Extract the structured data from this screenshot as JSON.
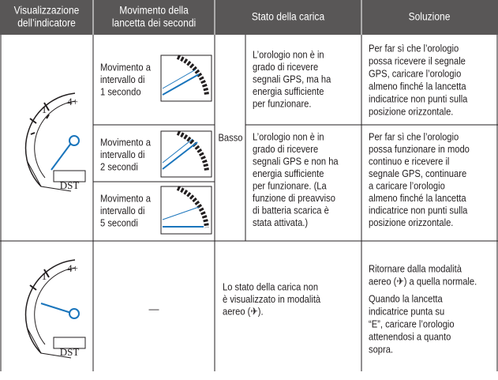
{
  "header": [
    [
      "Visualizzazione",
      "dell’indicatore"
    ],
    [
      "Movimento della",
      "lancetta dei secondi"
    ],
    [
      "Stato della carica"
    ],
    [
      "Soluzione"
    ]
  ],
  "section1": {
    "dial": [
      "4+",
      "1",
      "DST"
    ],
    "movements": [
      [
        "Movimento a",
        "intervallo di",
        "1 secondo"
      ],
      [
        "Movimento a",
        "intervallo di",
        "2 secondi"
      ],
      [
        "Movimento a",
        "intervallo di",
        "5 secondi"
      ]
    ],
    "level": "Basso",
    "states": [
      [
        "L’orologio non è in",
        "grado di ricevere",
        "segnali GPS, ma ha",
        "energia sufficiente",
        "per funzionare."
      ],
      [
        "L’orologio non è in",
        "grado di ricevere",
        "segnali GPS e non ha",
        "energia sufficiente",
        "per funzionare. (La",
        "funzione di preavviso",
        "di batteria scarica è",
        "stata attivata.)"
      ]
    ],
    "solutions": [
      [
        "Per far sì che l’orologio",
        "possa ricevere il segnale",
        "GPS, caricare l’orologio",
        "almeno finché la lancetta",
        "indicatrice non punti sulla",
        "posizione orizzontale."
      ],
      [
        "Per far sì che l’orologio",
        "possa funzionare in modo",
        "continuo e ricevere il",
        "segnale GPS, continuare",
        "a caricare l’orologio",
        "almeno finché la lancetta",
        "indicatrice non punti sulla",
        "posizione orizzontale."
      ]
    ]
  },
  "section2": {
    "dial": [
      "4+",
      "1",
      "DST"
    ],
    "movement": "—",
    "state": [
      "Lo stato della carica non",
      "è visualizzato in modalità",
      "aereo (✈)."
    ],
    "solution": [
      [
        "Ritornare dalla modalità",
        "aereo (✈) a quella normale."
      ],
      [
        "Quando la lancetta",
        "indicatrice punta su",
        "“E”, caricare l’orologio",
        "attenendosi a quanto",
        "sopra."
      ]
    ]
  }
}
